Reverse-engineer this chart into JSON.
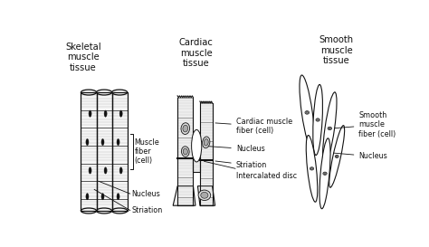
{
  "background_color": "#ffffff",
  "skeletal_title": "Skeletal\nmuscle\ntissue",
  "cardiac_title": "Cardiac\nmuscle\ntissue",
  "smooth_title": "Smooth\nmuscle\ntissue",
  "skeletal_labels": [
    "Muscle\nfiber\n(cell)",
    "Nucleus",
    "Striation"
  ],
  "cardiac_labels": [
    "Cardiac muscle\nfiber (cell)",
    "Nucleus",
    "Striation",
    "Intercalated disc"
  ],
  "smooth_labels": [
    "Smooth\nmuscle\nfiber (cell)",
    "Nucleus"
  ],
  "line_color": "#111111",
  "text_color": "#111111",
  "stripe_light": "#cccccc",
  "stripe_dark": "#555555",
  "nucleus_fill": "#999999"
}
